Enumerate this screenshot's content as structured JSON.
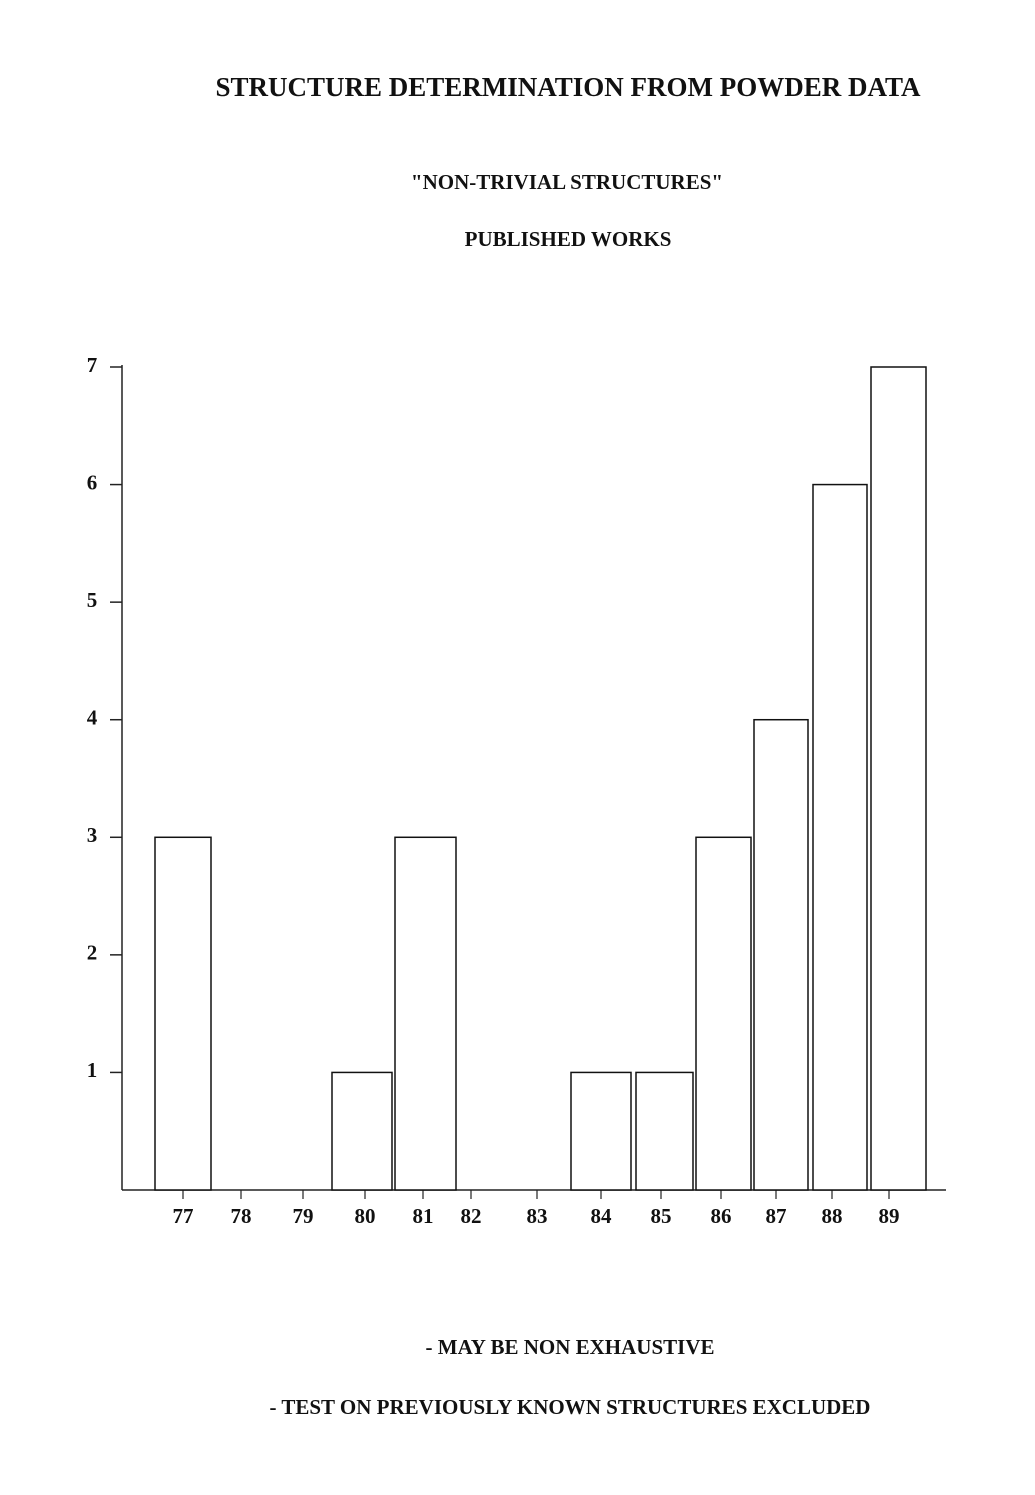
{
  "chart_data": {
    "type": "bar",
    "title": "STRUCTURE DETERMINATION FROM POWDER DATA",
    "subtitle": [
      "\"NON-TRIVIAL STRUCTURES\"",
      "PUBLISHED WORKS"
    ],
    "categories": [
      "77",
      "78",
      "79",
      "80",
      "81",
      "82",
      "83",
      "84",
      "85",
      "86",
      "87",
      "88",
      "89"
    ],
    "values": [
      3,
      0,
      0,
      1,
      3,
      0,
      0,
      1,
      1,
      3,
      4,
      6,
      7
    ],
    "color": "#ffffff",
    "ylim": [
      0,
      7
    ],
    "yticks": [
      1,
      2,
      3,
      4,
      5,
      6,
      7
    ],
    "annotations": [
      "- MAY BE NON EXHAUSTIVE",
      "- TEST ON PREVIOUSLY KNOWN STRUCTURES EXCLUDED"
    ]
  }
}
